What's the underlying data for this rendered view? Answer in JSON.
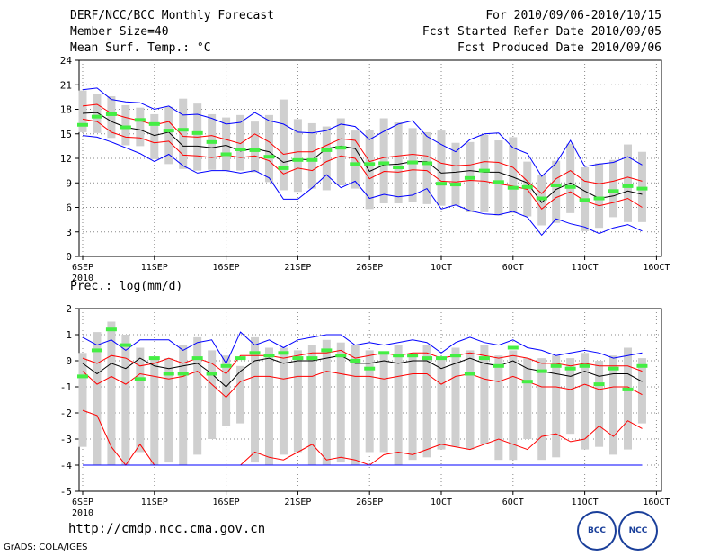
{
  "header": {
    "title": "DERF/NCC/BCC Monthly Forecast",
    "member": "Member Size=40",
    "variable": "Mean Surf. Temp.: °C",
    "period": "For 2010/09/06-2010/10/15",
    "started": "Fcst Started Refer Date 2010/09/05",
    "produced": "Fcst Produced Date 2010/09/06"
  },
  "footer": {
    "url": "http://cmdp.ncc.cma.gov.cn",
    "grads": "GrADS: COLA/IGES",
    "logo_bcc": "BCC",
    "logo_ncc": "NCC"
  },
  "colors": {
    "envelope": "#0000ff",
    "spread": "#ff0000",
    "mean": "#000000",
    "climatology": "#44ee44",
    "box": "#cfcfcf"
  },
  "chart_data": [
    {
      "type": "line",
      "title": "Mean Surf. Temp.: °C",
      "x_tick_labels": [
        "6SEP",
        "11SEP",
        "16SEP",
        "21SEP",
        "26SEP",
        "1OCT",
        "6OCT",
        "11OCT",
        "16OCT"
      ],
      "x_tick_days": [
        1,
        6,
        11,
        16,
        21,
        26,
        31,
        36,
        41
      ],
      "year_label": "2010",
      "ylim": [
        0,
        24
      ],
      "yticks": [
        0,
        3,
        6,
        9,
        12,
        15,
        18,
        21,
        24
      ],
      "grid": true,
      "days": [
        1,
        2,
        3,
        4,
        5,
        6,
        7,
        8,
        9,
        10,
        11,
        12,
        13,
        14,
        15,
        16,
        17,
        18,
        19,
        20,
        21,
        22,
        23,
        24,
        25,
        26,
        27,
        28,
        29,
        30,
        31,
        32,
        33,
        34,
        35,
        36,
        37,
        38,
        39,
        40
      ],
      "series": [
        {
          "name": "ensemble max",
          "values": [
            20.4,
            20.6,
            19.2,
            18.9,
            18.8,
            18.0,
            18.4,
            17.3,
            17.4,
            16.9,
            16.2,
            16.4,
            17.6,
            16.6,
            16.2,
            15.2,
            15.1,
            15.4,
            16.2,
            15.9,
            14.3,
            15.3,
            16.2,
            16.6,
            14.7,
            13.7,
            12.8,
            14.3,
            15.0,
            15.1,
            13.3,
            12.6,
            9.8,
            11.4,
            14.2,
            11.0,
            11.3,
            11.5,
            12.2,
            11.2
          ]
        },
        {
          "name": "upper spread",
          "values": [
            18.4,
            18.6,
            17.5,
            17.0,
            16.6,
            16.1,
            16.5,
            14.7,
            14.6,
            14.8,
            14.3,
            13.8,
            15.0,
            14.0,
            12.5,
            12.8,
            12.8,
            13.6,
            14.4,
            14.2,
            11.6,
            12.1,
            12.3,
            12.5,
            12.3,
            11.4,
            11.1,
            11.2,
            11.6,
            11.5,
            10.9,
            9.2,
            7.7,
            9.5,
            10.5,
            9.2,
            8.9,
            9.2,
            9.7,
            9.2
          ]
        },
        {
          "name": "ensemble mean",
          "values": [
            17.5,
            17.6,
            16.5,
            15.8,
            15.5,
            14.8,
            15.2,
            13.5,
            13.5,
            13.3,
            13.6,
            12.9,
            13.2,
            12.8,
            11.5,
            11.9,
            11.8,
            13.2,
            13.5,
            13.2,
            10.4,
            11.2,
            11.3,
            11.6,
            11.6,
            10.2,
            10.3,
            10.5,
            10.3,
            10.3,
            9.7,
            9.0,
            6.6,
            8.2,
            9.0,
            8.0,
            7.1,
            7.4,
            8.0,
            7.6
          ]
        },
        {
          "name": "lower spread",
          "values": [
            16.8,
            16.5,
            15.2,
            14.6,
            14.5,
            13.9,
            14.1,
            12.4,
            12.3,
            12.1,
            12.4,
            12.1,
            12.3,
            11.7,
            10.1,
            10.8,
            10.5,
            11.6,
            12.3,
            12.0,
            9.5,
            10.4,
            10.3,
            10.6,
            10.5,
            9.2,
            9.1,
            9.3,
            9.2,
            8.9,
            8.6,
            8.2,
            5.8,
            7.2,
            7.9,
            6.8,
            6.2,
            6.6,
            7.1,
            6.0
          ]
        },
        {
          "name": "ensemble min",
          "values": [
            14.8,
            14.6,
            14.0,
            13.3,
            12.6,
            11.6,
            12.5,
            11.1,
            10.2,
            10.5,
            10.5,
            10.2,
            10.5,
            9.6,
            7.0,
            7.0,
            8.4,
            10.0,
            8.4,
            9.2,
            7.1,
            7.6,
            7.3,
            7.5,
            8.3,
            5.8,
            6.3,
            5.6,
            5.2,
            5.1,
            5.5,
            4.8,
            2.6,
            4.6,
            4.0,
            3.6,
            2.8,
            3.5,
            3.9,
            3.1
          ]
        }
      ],
      "boxes": {
        "top": [
          20.3,
          19.9,
          19.6,
          18.5,
          18.2,
          17.4,
          18.3,
          19.3,
          18.7,
          17.4,
          17.0,
          17.3,
          16.5,
          17.3,
          19.2,
          16.8,
          16.3,
          15.9,
          16.9,
          15.4,
          15.5,
          16.9,
          16.4,
          15.7,
          15.2,
          15.4,
          13.9,
          14.0,
          14.9,
          14.2,
          14.6,
          11.6,
          10.0,
          11.7,
          13.8,
          10.9,
          11.4,
          11.8,
          13.7,
          12.8
        ],
        "bottom": [
          15.2,
          15.1,
          14.5,
          13.6,
          13.5,
          11.9,
          11.3,
          10.7,
          10.5,
          10.6,
          10.5,
          10.5,
          10.3,
          9.1,
          8.1,
          7.9,
          8.3,
          8.1,
          8.7,
          8.3,
          5.8,
          6.5,
          6.5,
          6.7,
          6.4,
          6.2,
          6.2,
          5.4,
          5.4,
          5.0,
          5.3,
          4.9,
          3.8,
          4.1,
          5.3,
          3.1,
          3.5,
          4.8,
          4.2,
          4.2
        ]
      },
      "climatology": [
        16.1,
        17.1,
        17.4,
        15.8,
        16.7,
        16.2,
        15.4,
        15.5,
        15.1,
        14.0,
        12.5,
        13.1,
        13.0,
        12.2,
        10.8,
        11.8,
        11.8,
        13.0,
        13.3,
        11.3,
        11.3,
        11.4,
        10.9,
        11.5,
        11.4,
        8.9,
        8.8,
        9.6,
        10.5,
        9.1,
        8.4,
        8.5,
        7.1,
        8.7,
        8.5,
        6.9,
        7.1,
        8.0,
        8.6,
        8.3
      ]
    },
    {
      "type": "line",
      "title": "Prec.: log(mm/d)",
      "x_tick_labels": [
        "6SEP",
        "11SEP",
        "16SEP",
        "21SEP",
        "26SEP",
        "1OCT",
        "6OCT",
        "11OCT",
        "16OCT"
      ],
      "x_tick_days": [
        1,
        6,
        11,
        16,
        21,
        26,
        31,
        36,
        41
      ],
      "year_label": "2010",
      "ylim": [
        -5,
        2
      ],
      "yticks": [
        -5,
        -4,
        -3,
        -2,
        -1,
        0,
        1,
        2
      ],
      "grid": true,
      "days": [
        1,
        2,
        3,
        4,
        5,
        6,
        7,
        8,
        9,
        10,
        11,
        12,
        13,
        14,
        15,
        16,
        17,
        18,
        19,
        20,
        21,
        22,
        23,
        24,
        25,
        26,
        27,
        28,
        29,
        30,
        31,
        32,
        33,
        34,
        35,
        36,
        37,
        38,
        39,
        40
      ],
      "series": [
        {
          "name": "ensemble max",
          "values": [
            0.9,
            0.6,
            0.8,
            0.4,
            0.8,
            0.8,
            0.8,
            0.4,
            0.7,
            0.8,
            -0.1,
            1.1,
            0.6,
            0.8,
            0.5,
            0.8,
            0.9,
            1.0,
            1.0,
            0.6,
            0.7,
            0.6,
            0.7,
            0.8,
            0.7,
            0.3,
            0.7,
            0.9,
            0.7,
            0.6,
            0.8,
            0.5,
            0.4,
            0.2,
            0.3,
            0.4,
            0.3,
            0.1,
            0.2,
            0.3
          ]
        },
        {
          "name": "upper spread",
          "values": [
            0.1,
            -0.1,
            0.2,
            0.1,
            -0.2,
            -0.1,
            0.1,
            -0.1,
            0.1,
            -0.1,
            -0.5,
            0.2,
            0.2,
            0.2,
            0.1,
            0.2,
            0.3,
            0.3,
            0.4,
            0.1,
            0.2,
            0.3,
            0.2,
            0.3,
            0.3,
            0.1,
            0.2,
            0.3,
            0.2,
            0.1,
            0.2,
            0.1,
            -0.1,
            -0.1,
            -0.2,
            -0.1,
            -0.2,
            -0.2,
            -0.2,
            -0.4
          ]
        },
        {
          "name": "ensemble mean",
          "values": [
            -0.1,
            -0.5,
            -0.1,
            -0.3,
            0.1,
            -0.2,
            -0.3,
            -0.2,
            -0.1,
            -0.5,
            -1.0,
            -0.4,
            0.0,
            0.1,
            -0.1,
            0.0,
            0.0,
            0.1,
            0.2,
            -0.1,
            -0.1,
            0.0,
            -0.1,
            0.0,
            0.0,
            -0.3,
            -0.1,
            0.1,
            -0.1,
            -0.2,
            0.0,
            -0.3,
            -0.4,
            -0.5,
            -0.6,
            -0.4,
            -0.6,
            -0.5,
            -0.5,
            -0.8
          ]
        },
        {
          "name": "lower spread",
          "values": [
            -0.4,
            -0.9,
            -0.6,
            -0.9,
            -0.5,
            -0.6,
            -0.7,
            -0.6,
            -0.4,
            -0.9,
            -1.4,
            -0.8,
            -0.6,
            -0.6,
            -0.7,
            -0.6,
            -0.6,
            -0.4,
            -0.5,
            -0.6,
            -0.6,
            -0.7,
            -0.6,
            -0.5,
            -0.5,
            -0.9,
            -0.6,
            -0.5,
            -0.7,
            -0.8,
            -0.6,
            -0.8,
            -1.0,
            -1.0,
            -1.1,
            -0.9,
            -1.1,
            -1.0,
            -1.0,
            -1.3
          ]
        },
        {
          "name": "lower limit",
          "values": [
            -1.9,
            -2.1,
            -3.3,
            -4.0,
            -3.2,
            -4.0,
            -4.0,
            -4.0,
            -4.0,
            -4.0,
            -4.0,
            -4.0,
            -3.5,
            -3.7,
            -3.8,
            -3.5,
            -3.2,
            -3.8,
            -3.7,
            -3.8,
            -4.0,
            -3.6,
            -3.5,
            -3.6,
            -3.4,
            -3.2,
            -3.3,
            -3.4,
            -3.2,
            -3.0,
            -3.2,
            -3.4,
            -2.9,
            -2.8,
            -3.1,
            -3.0,
            -2.5,
            -2.9,
            -2.3,
            -2.6
          ]
        },
        {
          "name": "ensemble min",
          "values": [
            -4.0,
            -4.0,
            -4.0,
            -4.0,
            -4.0,
            -4.0,
            -4.0,
            -4.0,
            -4.0,
            -4.0,
            -4.0,
            -4.0,
            -4.0,
            -4.0,
            -4.0,
            -4.0,
            -4.0,
            -4.0,
            -4.0,
            -4.0,
            -4.0,
            -4.0,
            -4.0,
            -4.0,
            -4.0,
            -4.0,
            -4.0,
            -4.0,
            -4.0,
            -4.0,
            -4.0,
            -4.0,
            -4.0,
            -4.0,
            -4.0,
            -4.0,
            -4.0,
            -4.0,
            -4.0,
            -4.0
          ]
        }
      ],
      "boxes": {
        "top": [
          0.3,
          1.1,
          1.5,
          1.0,
          0.5,
          0.1,
          0.1,
          0.6,
          0.9,
          0.4,
          0.2,
          -0.2,
          0.9,
          0.5,
          0.5,
          0.4,
          0.6,
          0.8,
          0.7,
          0.6,
          0.4,
          0.3,
          0.6,
          0.3,
          0.6,
          0.1,
          0.5,
          0.4,
          0.6,
          0.2,
          0.4,
          0.1,
          0.1,
          0.2,
          0.1,
          0.3,
          0.0,
          0.2,
          0.5,
          0.1
        ],
        "bottom": [
          -3.3,
          -4.0,
          -4.0,
          -4.0,
          -3.5,
          -4.0,
          -3.9,
          -4.0,
          -3.6,
          -3.0,
          -2.5,
          -2.4,
          -3.9,
          -4.0,
          -3.6,
          -3.5,
          -4.0,
          -4.0,
          -3.9,
          -4.0,
          -3.5,
          -3.5,
          -4.0,
          -3.8,
          -3.7,
          -3.4,
          -3.3,
          -3.4,
          -3.2,
          -3.8,
          -3.8,
          -3.0,
          -3.8,
          -3.7,
          -2.8,
          -3.4,
          -3.3,
          -3.6,
          -3.4,
          -2.4
        ]
      },
      "climatology": [
        -0.6,
        0.4,
        1.2,
        0.6,
        -0.7,
        0.1,
        -0.5,
        -0.5,
        0.1,
        -0.5,
        -0.2,
        0.1,
        0.3,
        0.2,
        0.3,
        0.1,
        0.1,
        0.4,
        0.2,
        0.0,
        -0.3,
        0.3,
        0.2,
        0.2,
        0.1,
        0.1,
        0.2,
        -0.5,
        0.1,
        -0.2,
        0.5,
        -0.8,
        -0.4,
        -0.2,
        -0.3,
        -0.2,
        -0.9,
        -0.3,
        -1.1,
        -0.2
      ]
    }
  ]
}
